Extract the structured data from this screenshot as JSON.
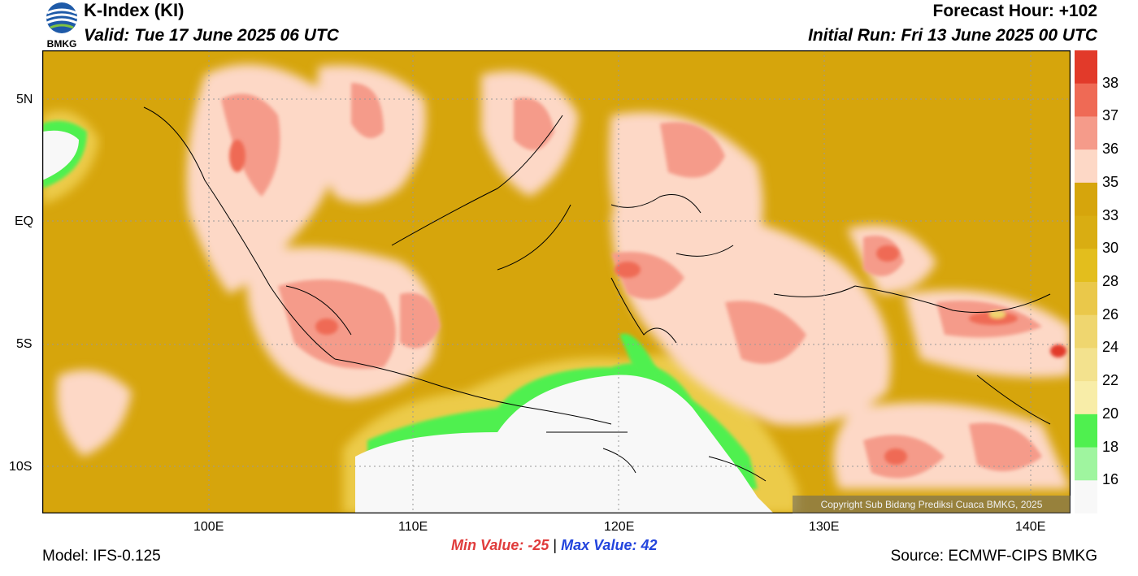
{
  "header": {
    "title": "K-Index (KI)",
    "valid": "Valid: Tue 17 June 2025 06 UTC",
    "forecast_hour": "Forecast Hour: +102",
    "initial_run": "Initial Run: Fri 13 June 2025 00 UTC",
    "logo_text": "BMKG"
  },
  "map": {
    "lat_labels": [
      "5N",
      "EQ",
      "5S",
      "10S"
    ],
    "lon_labels": [
      "100E",
      "110E",
      "120E",
      "130E",
      "140E"
    ],
    "copyright": "Copyright Sub Bidang Prediksi Cuaca BMKG, 2025"
  },
  "colorbar": {
    "labels": [
      "38",
      "37",
      "36",
      "35",
      "33",
      "30",
      "28",
      "26",
      "24",
      "22",
      "20",
      "18",
      "16"
    ],
    "colors": [
      "#e23a2a",
      "#ef6a55",
      "#f59b8a",
      "#fdd8c6",
      "#d6a50c",
      "#d9ad12",
      "#e3be1d",
      "#eac84a",
      "#efd66f",
      "#f3e28e",
      "#f8eda8",
      "#4ff04f",
      "#9ff59f",
      "#f8f8f8"
    ]
  },
  "stats": {
    "min_label": "Min Value: -25",
    "separator": "|",
    "max_label": "Max Value:  42"
  },
  "footer": {
    "model": "Model: IFS-0.125",
    "source": "Source: ECMWF-CIPS BMKG"
  }
}
